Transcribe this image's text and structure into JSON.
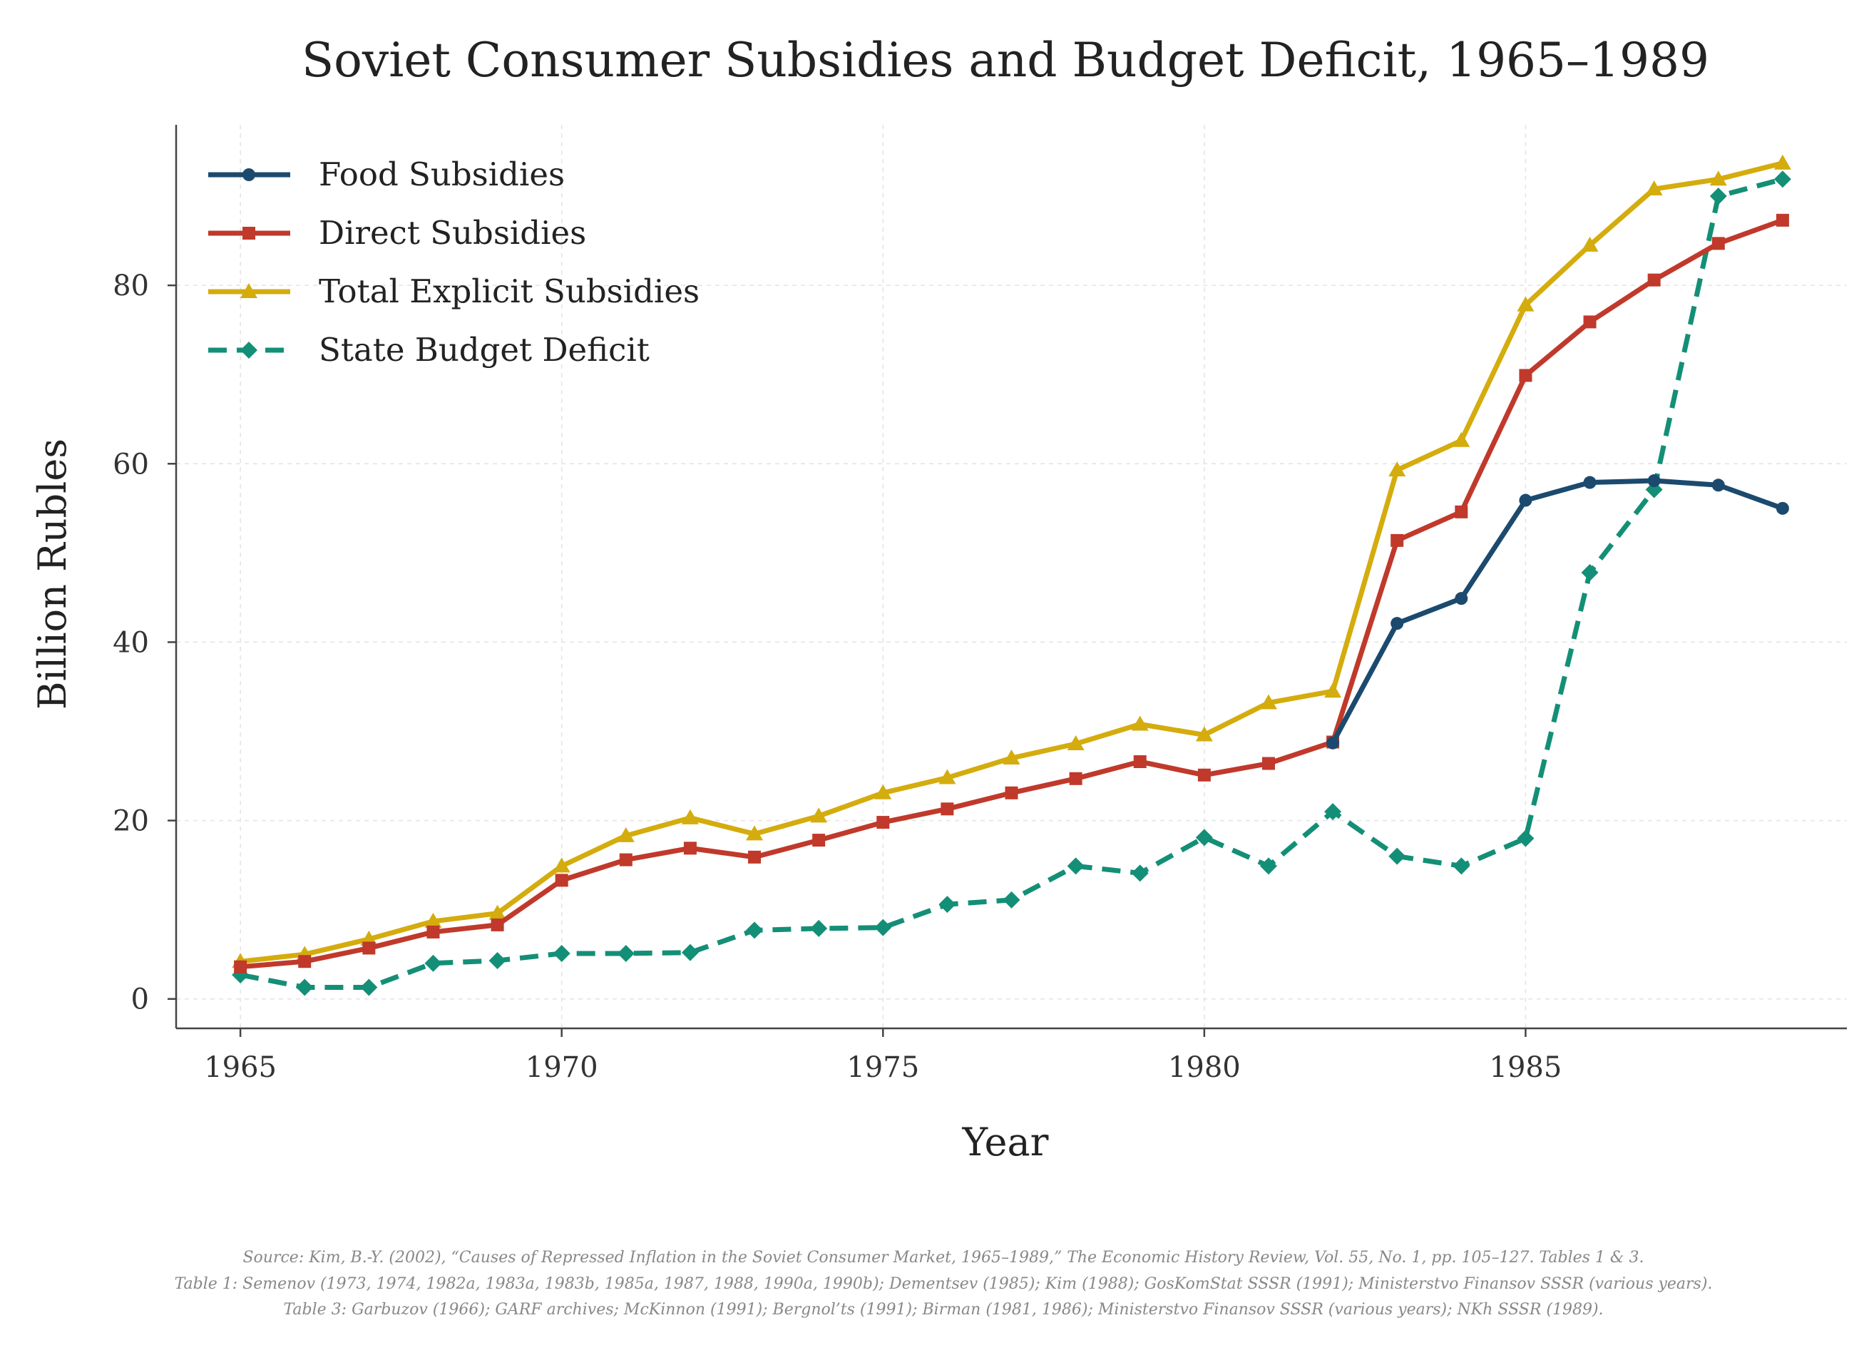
{
  "chart_data": {
    "type": "line",
    "title": "Soviet Consumer Subsidies and Budget Deficit, 1965–1989",
    "xlabel": "Year",
    "ylabel": "Billion Rubles",
    "x": [
      1965,
      1966,
      1967,
      1968,
      1969,
      1970,
      1971,
      1972,
      1973,
      1974,
      1975,
      1976,
      1977,
      1978,
      1979,
      1980,
      1981,
      1982,
      1983,
      1984,
      1985,
      1986,
      1987,
      1988,
      1989
    ],
    "xlim": [
      1964,
      1990
    ],
    "ylim": [
      -3.3,
      98
    ],
    "xticks": [
      1965,
      1970,
      1975,
      1980,
      1985
    ],
    "yticks": [
      0,
      20,
      40,
      60,
      80
    ],
    "grid": true,
    "legend_position": "top-left",
    "series": [
      {
        "name": "Food Subsidies",
        "color": "#1b4a6e",
        "marker": "circle",
        "dashed": false,
        "values": [
          null,
          null,
          null,
          null,
          null,
          null,
          null,
          null,
          null,
          null,
          null,
          null,
          null,
          null,
          null,
          null,
          null,
          28.7,
          42.1,
          44.9,
          55.9,
          57.9,
          58.1,
          57.6,
          55.0
        ]
      },
      {
        "name": "Direct Subsidies",
        "color": "#c0392b",
        "marker": "square",
        "dashed": false,
        "values": [
          3.6,
          4.2,
          5.7,
          7.5,
          8.3,
          13.3,
          15.6,
          16.9,
          15.9,
          17.8,
          19.8,
          21.3,
          23.1,
          24.7,
          26.6,
          25.1,
          26.4,
          28.8,
          51.4,
          54.6,
          69.9,
          75.9,
          80.6,
          84.7,
          87.3
        ]
      },
      {
        "name": "Total Explicit Subsidies",
        "color": "#d4ac0d",
        "marker": "triangle",
        "dashed": false,
        "values": [
          4.2,
          5.0,
          6.7,
          8.7,
          9.6,
          14.9,
          18.3,
          20.3,
          18.5,
          20.5,
          23.1,
          24.8,
          27.0,
          28.6,
          30.8,
          29.6,
          33.2,
          34.5,
          59.3,
          62.6,
          77.8,
          84.5,
          90.8,
          91.9,
          93.7
        ]
      },
      {
        "name": "State Budget Deficit",
        "color": "#148f77",
        "marker": "diamond",
        "dashed": true,
        "values": [
          2.7,
          1.3,
          1.3,
          4.0,
          4.3,
          5.1,
          5.1,
          5.2,
          7.7,
          7.9,
          8.0,
          10.6,
          11.1,
          14.9,
          14.1,
          18.1,
          14.9,
          21.0,
          16.0,
          14.9,
          18.0,
          47.8,
          57.1,
          90.0,
          91.9
        ]
      }
    ],
    "source": [
      "Source: Kim, B.-Y. (2002), “Causes of Repressed Inflation in the Soviet Consumer Market, 1965–1989,” The Economic History Review, Vol. 55, No. 1, pp. 105–127. Tables 1 & 3.",
      "Table 1: Semenov (1973, 1974, 1982a, 1983a, 1983b, 1985a, 1987, 1988, 1990a, 1990b); Dementsev (1985); Kim (1988); GosKomStat SSSR (1991); Ministerstvo Finansov SSSR (various years).",
      "Table 3: Garbuzov (1966); GARF archives; McKinnon (1991); Bergnol’ts (1991); Birman (1981, 1986); Ministerstvo Finansov SSSR (various years); NKh SSSR (1989)."
    ]
  }
}
